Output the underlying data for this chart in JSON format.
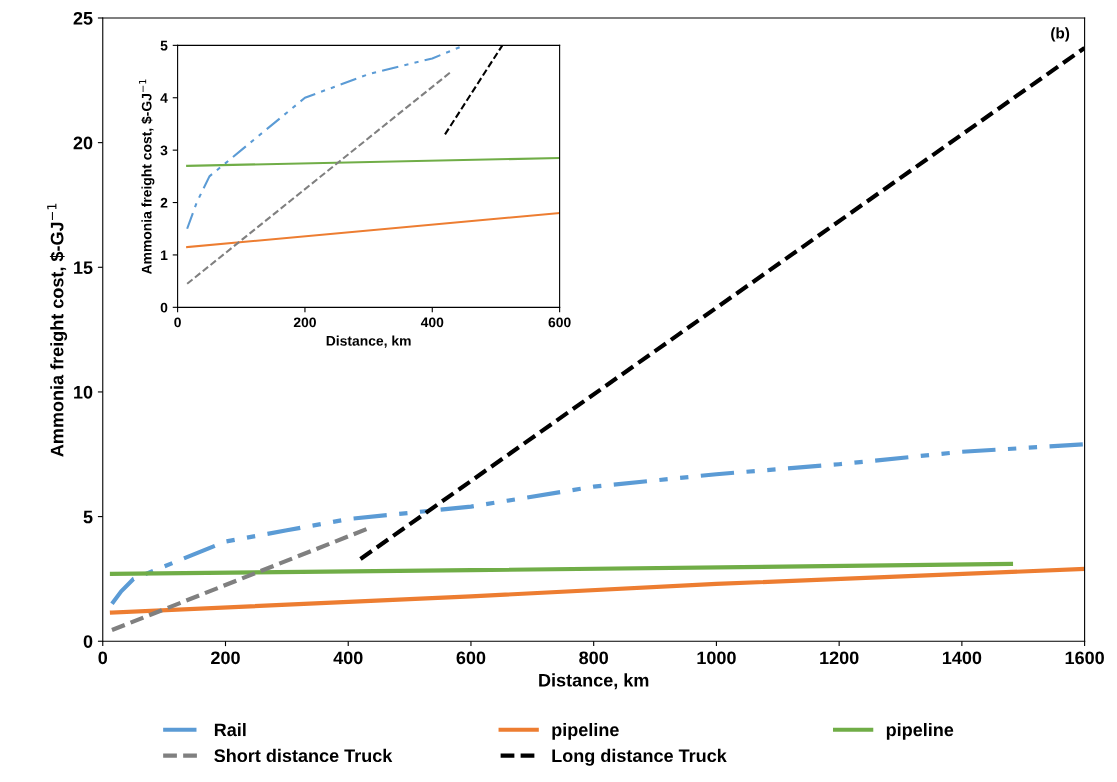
{
  "chart_data": [
    {
      "type": "line",
      "xlabel": "Distance, km",
      "ylabel": "Ammonia freight cost, $-GJ$^{−1}$",
      "xlim": [
        0,
        1600
      ],
      "ylim": [
        0,
        25
      ],
      "xticks": [
        0,
        200,
        400,
        600,
        800,
        1000,
        1200,
        1400,
        1600
      ],
      "yticks": [
        0,
        5,
        10,
        15,
        20,
        25
      ],
      "legend": "bottom",
      "annotations": [
        "(b)"
      ],
      "series": [
        {
          "name": "Rail",
          "color": "#5b9bd5",
          "line_style": "dashdot",
          "x": [
            15,
            30,
            50,
            100,
            200,
            300,
            400,
            600,
            800,
            1000,
            1200,
            1400,
            1600
          ],
          "values": [
            1.5,
            2.0,
            2.5,
            3.0,
            4.0,
            4.45,
            4.9,
            5.4,
            6.2,
            6.7,
            7.1,
            7.6,
            7.9
          ]
        },
        {
          "name": "pipeline",
          "color": "#ed7d31",
          "line_style": "solid",
          "x": [
            15,
            600,
            1000,
            1600
          ],
          "values": [
            1.15,
            1.8,
            2.3,
            2.9
          ]
        },
        {
          "name": "pipeline",
          "color": "#70ad47",
          "line_style": "solid",
          "x": [
            15,
            600,
            1480
          ],
          "values": [
            2.7,
            2.85,
            3.1
          ]
        },
        {
          "name": "Short distance Truck",
          "color": "#808080",
          "line_style": "dashed",
          "x": [
            15,
            430
          ],
          "values": [
            0.45,
            4.5
          ]
        },
        {
          "name": "Long distance Truck",
          "color": "#000000",
          "line_style": "dashed",
          "x": [
            420,
            1600
          ],
          "values": [
            3.3,
            23.8
          ]
        }
      ]
    },
    {
      "type": "line",
      "xlabel": "Distance, km",
      "ylabel": "Ammonia freight cost, $-GJ$^{−1}$",
      "xlim": [
        0,
        600
      ],
      "ylim": [
        0,
        5
      ],
      "xticks": [
        0,
        200,
        400,
        600
      ],
      "yticks": [
        0,
        1,
        2,
        3,
        4,
        5
      ],
      "series": [
        {
          "color": "#5b9bd5",
          "line_style": "dashdot",
          "x": [
            15,
            30,
            50,
            100,
            200,
            300,
            400,
            450
          ],
          "values": [
            1.5,
            2.0,
            2.5,
            3.0,
            4.0,
            4.45,
            4.75,
            5.0
          ]
        },
        {
          "color": "#ed7d31",
          "line_style": "solid",
          "x": [
            15,
            600
          ],
          "values": [
            1.15,
            1.8
          ]
        },
        {
          "color": "#70ad47",
          "line_style": "solid",
          "x": [
            15,
            600
          ],
          "values": [
            2.7,
            2.85
          ]
        },
        {
          "color": "#808080",
          "line_style": "dashed",
          "x": [
            15,
            430
          ],
          "values": [
            0.45,
            4.5
          ]
        },
        {
          "color": "#000000",
          "line_style": "dashed",
          "x": [
            420,
            510
          ],
          "values": [
            3.3,
            5.0
          ]
        }
      ]
    }
  ]
}
